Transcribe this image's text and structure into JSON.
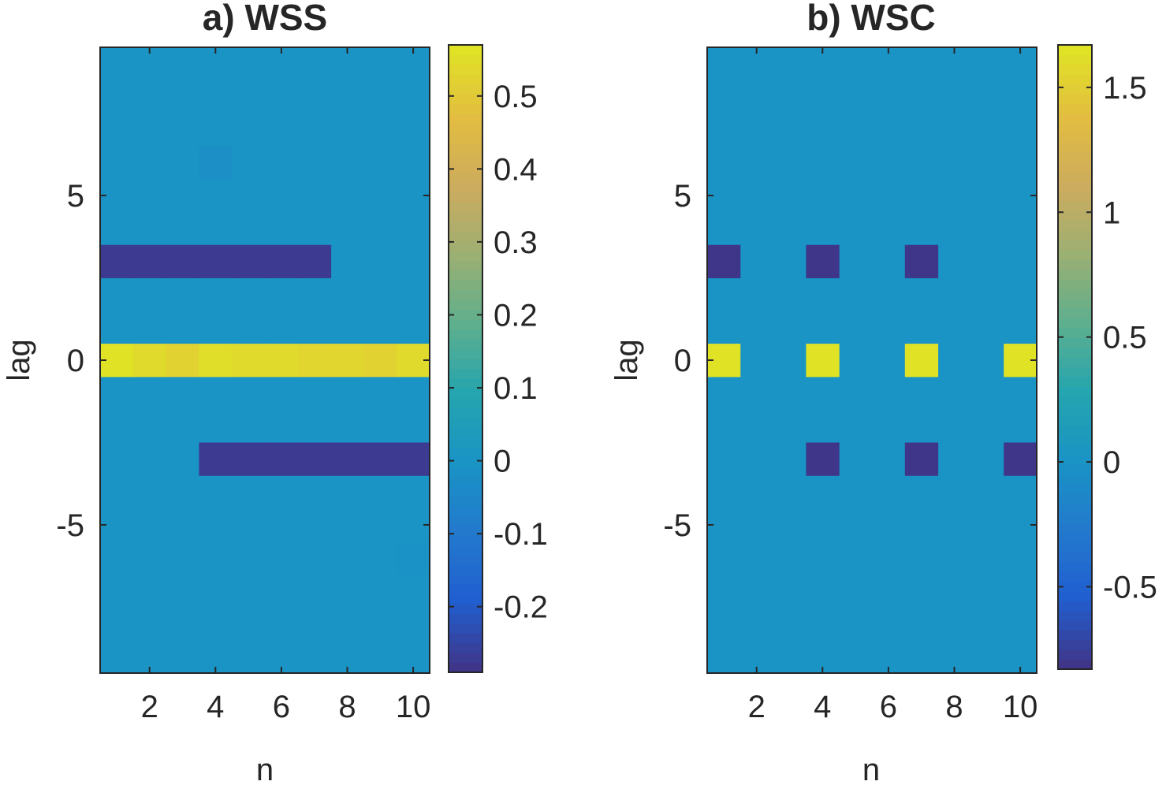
{
  "chart_data": [
    {
      "type": "heatmap",
      "title": "a) WSS",
      "xlabel": "n",
      "ylabel": "lag",
      "x": [
        1,
        2,
        3,
        4,
        5,
        6,
        7,
        8,
        9,
        10
      ],
      "y": [
        9,
        8,
        7,
        6,
        5,
        4,
        3,
        2,
        1,
        0,
        -1,
        -2,
        -3,
        -4,
        -5,
        -6,
        -7,
        -8,
        -9
      ],
      "xlim": [
        0.5,
        10.5
      ],
      "ylim": [
        -9.5,
        9.5
      ],
      "xticks": [
        "2",
        "4",
        "6",
        "8",
        "10"
      ],
      "yticks": [
        "-5",
        "0",
        "5"
      ],
      "clim": [
        -0.29,
        0.57
      ],
      "colorbar_ticks": [
        "-0.2",
        "-0.1",
        "0",
        "0.1",
        "0.2",
        "0.3",
        "0.4",
        "0.5"
      ],
      "colorbar_tick_values": [
        -0.2,
        -0.1,
        0,
        0.1,
        0.2,
        0.3,
        0.4,
        0.5
      ],
      "baseline": 0,
      "cells": [
        {
          "n": 1,
          "lag": 0,
          "value": 0.57
        },
        {
          "n": 2,
          "lag": 0,
          "value": 0.55
        },
        {
          "n": 3,
          "lag": 0,
          "value": 0.53
        },
        {
          "n": 4,
          "lag": 0,
          "value": 0.56
        },
        {
          "n": 5,
          "lag": 0,
          "value": 0.55
        },
        {
          "n": 6,
          "lag": 0,
          "value": 0.55
        },
        {
          "n": 7,
          "lag": 0,
          "value": 0.54
        },
        {
          "n": 8,
          "lag": 0,
          "value": 0.54
        },
        {
          "n": 9,
          "lag": 0,
          "value": 0.53
        },
        {
          "n": 10,
          "lag": 0,
          "value": 0.55
        },
        {
          "n": 1,
          "lag": 3,
          "value": -0.28
        },
        {
          "n": 2,
          "lag": 3,
          "value": -0.28
        },
        {
          "n": 3,
          "lag": 3,
          "value": -0.28
        },
        {
          "n": 4,
          "lag": 3,
          "value": -0.28
        },
        {
          "n": 5,
          "lag": 3,
          "value": -0.28
        },
        {
          "n": 6,
          "lag": 3,
          "value": -0.28
        },
        {
          "n": 7,
          "lag": 3,
          "value": -0.28
        },
        {
          "n": 4,
          "lag": -3,
          "value": -0.28
        },
        {
          "n": 5,
          "lag": -3,
          "value": -0.28
        },
        {
          "n": 6,
          "lag": -3,
          "value": -0.28
        },
        {
          "n": 7,
          "lag": -3,
          "value": -0.28
        },
        {
          "n": 8,
          "lag": -3,
          "value": -0.28
        },
        {
          "n": 9,
          "lag": -3,
          "value": -0.28
        },
        {
          "n": 10,
          "lag": -3,
          "value": -0.28
        },
        {
          "n": 4,
          "lag": 6,
          "value": -0.02
        },
        {
          "n": 10,
          "lag": -6,
          "value": -0.01
        }
      ]
    },
    {
      "type": "heatmap",
      "title": "b) WSC",
      "xlabel": "n",
      "ylabel": "lag",
      "x": [
        1,
        2,
        3,
        4,
        5,
        6,
        7,
        8,
        9,
        10
      ],
      "y": [
        9,
        8,
        7,
        6,
        5,
        4,
        3,
        2,
        1,
        0,
        -1,
        -2,
        -3,
        -4,
        -5,
        -6,
        -7,
        -8,
        -9
      ],
      "xlim": [
        0.5,
        10.5
      ],
      "ylim": [
        -9.5,
        9.5
      ],
      "xticks": [
        "2",
        "4",
        "6",
        "8",
        "10"
      ],
      "yticks": [
        "-5",
        "0",
        "5"
      ],
      "clim": [
        -0.83,
        1.67
      ],
      "colorbar_ticks": [
        "-0.5",
        "0",
        "0.5",
        "1",
        "1.5"
      ],
      "colorbar_tick_values": [
        -0.5,
        0,
        0.5,
        1,
        1.5
      ],
      "baseline": 0,
      "cells": [
        {
          "n": 1,
          "lag": 0,
          "value": 1.67
        },
        {
          "n": 4,
          "lag": 0,
          "value": 1.67
        },
        {
          "n": 7,
          "lag": 0,
          "value": 1.67
        },
        {
          "n": 10,
          "lag": 0,
          "value": 1.67
        },
        {
          "n": 1,
          "lag": 3,
          "value": -0.83
        },
        {
          "n": 4,
          "lag": 3,
          "value": -0.83
        },
        {
          "n": 7,
          "lag": 3,
          "value": -0.83
        },
        {
          "n": 4,
          "lag": -3,
          "value": -0.83
        },
        {
          "n": 7,
          "lag": -3,
          "value": -0.83
        },
        {
          "n": 10,
          "lag": -3,
          "value": -0.83
        }
      ]
    }
  ]
}
